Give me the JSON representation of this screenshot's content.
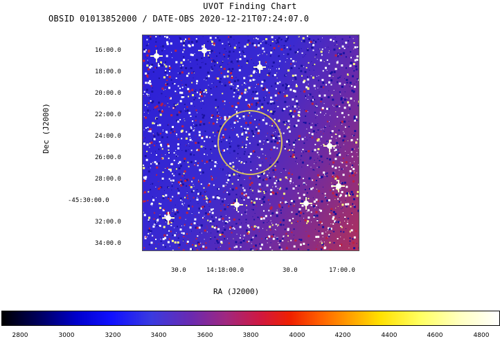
{
  "header": {
    "title": "UVOT Finding Chart",
    "subtitle": "OBSID 01013852000 / DATE-OBS 2020-12-21T07:24:07.0"
  },
  "axes": {
    "ylabel": "Dec (J2000)",
    "xlabel": "RA (J2000)",
    "dec_ticks": [
      "16:00.0",
      "18:00.0",
      "20:00.0",
      "22:00.0",
      "24:00.0",
      "26:00.0",
      "28:00.0",
      "-45:30:00.0",
      "32:00.0",
      "34:00.0"
    ],
    "ra_ticks": [
      "30.0",
      "14:18:00.0",
      "30.0",
      "17:00.0"
    ]
  },
  "colorbar": {
    "labels": [
      "2800",
      "3000",
      "3200",
      "3400",
      "3600",
      "3800",
      "4000",
      "4200",
      "4400",
      "4600",
      "4800"
    ]
  },
  "colors": {
    "circle": "#d8c060",
    "background_blue": "#2a1fd8"
  }
}
